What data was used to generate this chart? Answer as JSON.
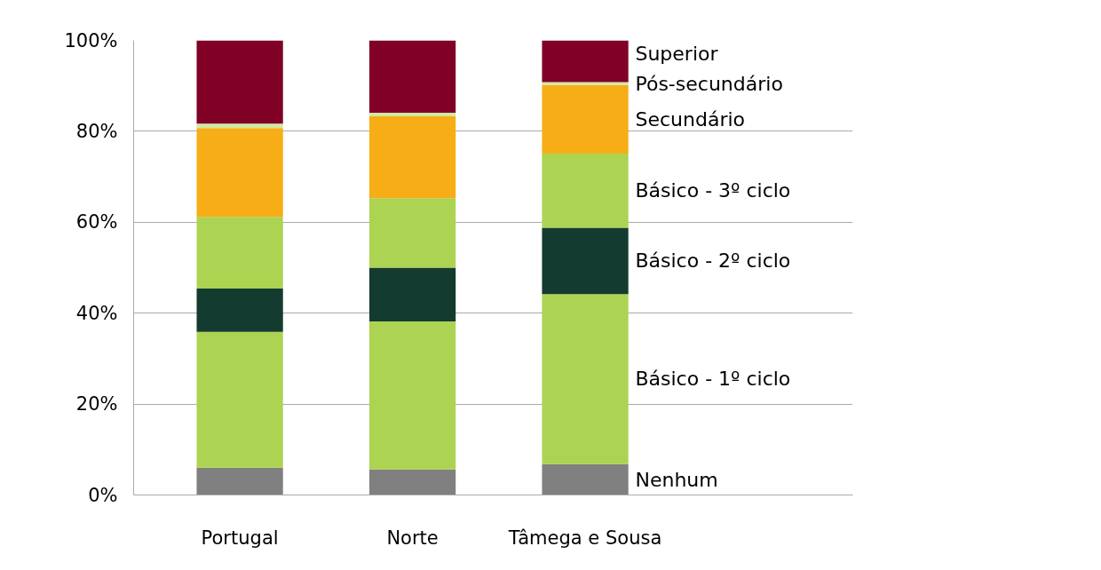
{
  "chart_data": {
    "type": "bar",
    "stacked": true,
    "categories": [
      "Portugal",
      "Norte",
      "Tâmega e Sousa"
    ],
    "series": [
      {
        "name": "Nenhum",
        "color": "#808080",
        "values": [
          6.0,
          5.6,
          6.8
        ]
      },
      {
        "name": "Básico - 1º ciclo",
        "color": "#acd352",
        "values": [
          29.9,
          32.6,
          37.4
        ]
      },
      {
        "name": "Básico - 2º ciclo",
        "color": "#133b2f",
        "values": [
          9.5,
          11.8,
          14.6
        ]
      },
      {
        "name": "Básico - 3º ciclo",
        "color": "#acd352",
        "values": [
          15.8,
          15.3,
          16.3
        ]
      },
      {
        "name": "Secundário",
        "color": "#f7ad16",
        "values": [
          19.5,
          18.0,
          15.1
        ]
      },
      {
        "name": "Pós-secundário",
        "color": "#d3e8a0",
        "values": [
          1.0,
          0.8,
          0.6
        ]
      },
      {
        "name": "Superior",
        "color": "#800026",
        "values": [
          18.3,
          15.9,
          9.2
        ]
      }
    ],
    "ylim": [
      0,
      100
    ],
    "yticks": [
      {
        "value": 0,
        "label": "0%"
      },
      {
        "value": 20,
        "label": "20%"
      },
      {
        "value": 40,
        "label": "40%"
      },
      {
        "value": 60,
        "label": "60%"
      },
      {
        "value": 80,
        "label": "80%"
      },
      {
        "value": 100,
        "label": "100%"
      }
    ],
    "grid": "y"
  }
}
